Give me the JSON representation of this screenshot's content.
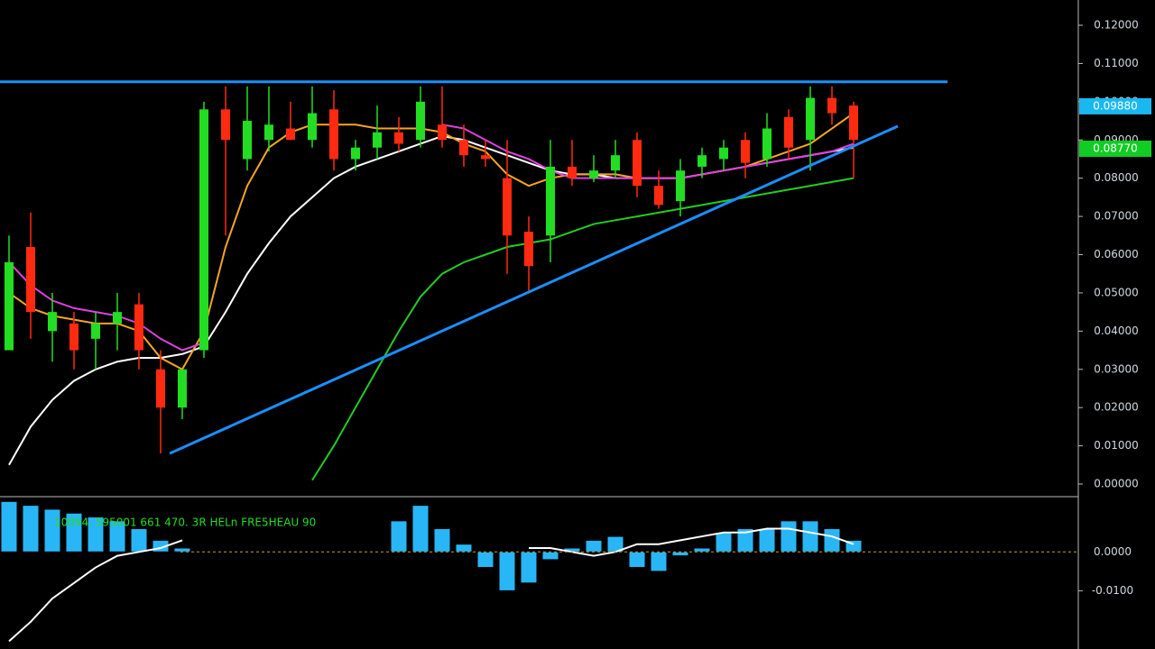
{
  "chart_data": {
    "type": "candlestick",
    "up_color": "#22dd22",
    "down_color": "#ff2a10",
    "ylim": [
      0,
      0.12
    ],
    "yticks": [
      {
        "value": 0,
        "label": "0.00000"
      },
      {
        "value": 0.01,
        "label": "0.01000"
      },
      {
        "value": 0.02,
        "label": "0.02000"
      },
      {
        "value": 0.03,
        "label": "0.03000"
      },
      {
        "value": 0.04,
        "label": "0.04000"
      },
      {
        "value": 0.05,
        "label": "0.05000"
      },
      {
        "value": 0.06,
        "label": "0.06000"
      },
      {
        "value": 0.07,
        "label": "0.07000"
      },
      {
        "value": 0.08,
        "label": "0.08000"
      },
      {
        "value": 0.09,
        "label": "0.09000"
      },
      {
        "value": 0.1,
        "label": "0.10000"
      },
      {
        "value": 0.11,
        "label": "0.11000"
      },
      {
        "value": 0.12,
        "label": "0.12000"
      }
    ],
    "open": [
      0.035,
      0.062,
      0.04,
      0.042,
      0.038,
      0.042,
      0.047,
      0.03,
      0.02,
      0.035,
      0.098,
      0.085,
      0.09,
      0.093,
      0.09,
      0.098,
      0.085,
      0.088,
      0.092,
      0.09,
      0.094,
      0.09,
      0.086,
      0.08,
      0.066,
      0.065,
      0.083,
      0.08,
      0.082,
      0.09,
      0.078,
      0.074,
      0.083,
      0.085,
      0.09,
      0.085,
      0.096,
      0.09,
      0.101,
      0.099
    ],
    "high": [
      0.065,
      0.071,
      0.05,
      0.045,
      0.045,
      0.05,
      0.05,
      0.035,
      0.03,
      0.1,
      0.104,
      0.104,
      0.104,
      0.1,
      0.104,
      0.103,
      0.09,
      0.099,
      0.096,
      0.104,
      0.104,
      0.094,
      0.09,
      0.09,
      0.07,
      0.09,
      0.09,
      0.086,
      0.09,
      0.092,
      0.082,
      0.085,
      0.088,
      0.09,
      0.092,
      0.097,
      0.098,
      0.104,
      0.104,
      0.1
    ],
    "low": [
      0.035,
      0.038,
      0.032,
      0.03,
      0.03,
      0.035,
      0.03,
      0.008,
      0.017,
      0.033,
      0.065,
      0.082,
      0.087,
      0.09,
      0.088,
      0.082,
      0.082,
      0.085,
      0.087,
      0.088,
      0.088,
      0.083,
      0.083,
      0.055,
      0.05,
      0.058,
      0.078,
      0.079,
      0.08,
      0.075,
      0.072,
      0.07,
      0.08,
      0.082,
      0.08,
      0.083,
      0.085,
      0.082,
      0.094,
      0.08
    ],
    "close": [
      0.058,
      0.045,
      0.045,
      0.035,
      0.042,
      0.045,
      0.035,
      0.02,
      0.03,
      0.098,
      0.09,
      0.095,
      0.094,
      0.09,
      0.097,
      0.085,
      0.088,
      0.092,
      0.089,
      0.1,
      0.09,
      0.086,
      0.085,
      0.065,
      0.057,
      0.083,
      0.08,
      0.082,
      0.086,
      0.078,
      0.073,
      0.082,
      0.086,
      0.088,
      0.084,
      0.093,
      0.088,
      0.101,
      0.097,
      0.09
    ],
    "series": [
      {
        "color": "#ffffff",
        "values": [
          0.005,
          0.015,
          0.022,
          0.027,
          0.03,
          0.032,
          0.033,
          0.033,
          0.034,
          0.036,
          0.045,
          0.055,
          0.063,
          0.07,
          0.075,
          0.08,
          0.083,
          0.085,
          0.087,
          0.089,
          0.091,
          0.09,
          0.088,
          0.086,
          0.084,
          0.082,
          0.081,
          0.081,
          0.08,
          0.08,
          0.08,
          0.08,
          0.081,
          0.082,
          0.083,
          0.084,
          0.085,
          0.086,
          0.087,
          0.088
        ]
      },
      {
        "color": "#f5a623",
        "values": [
          0.05,
          0.046,
          0.044,
          0.043,
          0.042,
          0.042,
          0.04,
          0.033,
          0.03,
          0.04,
          0.062,
          0.078,
          0.088,
          0.092,
          0.094,
          0.094,
          0.094,
          0.093,
          0.093,
          0.093,
          0.092,
          0.089,
          0.087,
          0.081,
          0.078,
          0.08,
          0.081,
          0.081,
          0.081,
          0.08,
          0.08,
          0.08,
          0.081,
          0.082,
          0.083,
          0.085,
          0.087,
          0.089,
          0.093,
          0.097
        ]
      },
      {
        "color": "#e040e0",
        "values": [
          0.058,
          0.052,
          0.048,
          0.046,
          0.045,
          0.044,
          0.042,
          0.038,
          0.035,
          0.037,
          null,
          null,
          null,
          null,
          null,
          null,
          null,
          null,
          null,
          null,
          0.094,
          0.093,
          0.09,
          0.087,
          0.085,
          0.082,
          0.08,
          0.08,
          0.08,
          0.08,
          0.08,
          0.08,
          0.081,
          0.082,
          0.083,
          0.084,
          0.085,
          0.086,
          0.087,
          0.089
        ]
      },
      {
        "color": "#22cc22",
        "values": [
          null,
          null,
          null,
          null,
          null,
          null,
          null,
          null,
          null,
          null,
          null,
          null,
          null,
          null,
          0.001,
          0.01,
          0.02,
          0.03,
          0.04,
          0.049,
          0.055,
          0.058,
          0.06,
          0.062,
          0.063,
          0.064,
          0.066,
          0.068,
          0.069,
          0.07,
          0.071,
          0.072,
          0.073,
          0.074,
          0.075,
          0.076,
          0.077,
          0.078,
          0.079,
          0.08
        ]
      }
    ],
    "level": {
      "value": 0.1052,
      "color": "#1a8fff"
    },
    "trendline": {
      "x": [
        7.42,
        41.04
      ],
      "values": [
        0.008,
        0.0936
      ],
      "color": "#1a8fff"
    },
    "price_tags": [
      {
        "value": 0.0988,
        "label": "0.09880",
        "color": "#1ab8f0"
      },
      {
        "value": 0.0877,
        "label": "0.08770",
        "color": "#11cc22"
      }
    ],
    "oscillator": {
      "label": "10094. 595001 661 470. 3R HELn FRE5HEAU 90",
      "ylim": [
        -0.025,
        0.014
      ],
      "yticks": [
        {
          "value": 0,
          "label": "0.0000"
        },
        {
          "value": -0.01,
          "label": "-0.0100"
        }
      ],
      "color": "#29b6f6",
      "values": [
        0.013,
        0.012,
        0.011,
        0.01,
        0.009,
        0.008,
        0.006,
        0.003,
        0.001,
        0,
        0,
        0,
        0,
        0,
        0,
        0,
        0,
        0,
        0.008,
        0.012,
        0.006,
        0.002,
        -0.004,
        -0.01,
        -0.008,
        -0.002,
        0.001,
        0.003,
        0.004,
        -0.004,
        -0.005,
        -0.001,
        0.001,
        0.005,
        0.006,
        0.006,
        0.008,
        0.008,
        0.006,
        0.003
      ],
      "signal": {
        "color": "#ffffff",
        "values": [
          -0.023,
          -0.018,
          -0.012,
          -0.008,
          -0.004,
          -0.001,
          0.0,
          0.001,
          0.003,
          null,
          null,
          null,
          null,
          null,
          null,
          null,
          null,
          null,
          null,
          null,
          null,
          null,
          null,
          null,
          0.001,
          0.001,
          0.0,
          -0.001,
          0.0,
          0.002,
          0.002,
          0.003,
          0.004,
          0.005,
          0.005,
          0.006,
          0.006,
          0.005,
          0.004,
          0.002
        ]
      }
    }
  }
}
